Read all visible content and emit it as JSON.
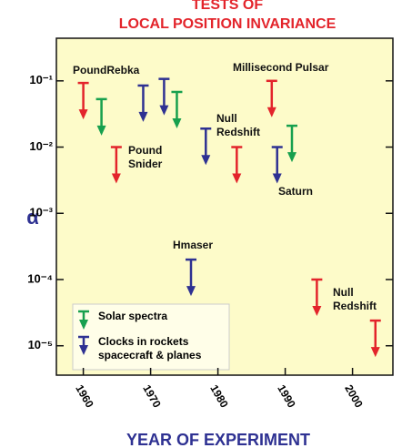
{
  "chart_data": {
    "type": "upper-limit",
    "title": [
      "TESTS OF",
      "LOCAL POSITION INVARIANCE"
    ],
    "xlabel": "YEAR OF EXPERIMENT",
    "ylabel": "α",
    "log_y": true,
    "xlim": [
      1956,
      2006
    ],
    "xticks": [
      1960,
      1970,
      1980,
      1990,
      2000
    ],
    "ylim": [
      3.6e-06,
      0.44
    ],
    "yticks": [
      {
        "value": 0.1,
        "label": "10⁻¹"
      },
      {
        "value": 0.01,
        "label": "10⁻²"
      },
      {
        "value": 0.001,
        "label": "10⁻³"
      },
      {
        "value": 0.0001,
        "label": "10⁻⁴"
      },
      {
        "value": 1e-05,
        "label": "10⁻⁵"
      }
    ],
    "legend": "lower left",
    "series": [
      {
        "color": "#e3242b",
        "x": [
          1960,
          1964.9,
          1982.8,
          1988,
          1994.7,
          2003.4
        ],
        "values": [
          0.093,
          0.01,
          0.01,
          0.1,
          0.0001,
          2.4e-05
        ]
      },
      {
        "name": "Solar spectra",
        "color": "#17a04e",
        "x": [
          1962.7,
          1973.9,
          1991
        ],
        "values": [
          0.053,
          0.068,
          0.021
        ]
      },
      {
        "name": [
          "Clocks in rockets",
          "spacecraft & planes"
        ],
        "color": "#2e3192",
        "x": [
          1968.9,
          1972,
          1978.2,
          1988.8,
          1976
        ],
        "values": [
          0.085,
          0.107,
          0.019,
          0.01,
          0.0002
        ]
      }
    ],
    "annotations": [
      [
        "PoundRebka"
      ],
      [
        "Millisecond Pulsar"
      ],
      [
        "Null",
        "Redshift"
      ],
      [
        "Pound",
        "Snider"
      ],
      [
        "Saturn"
      ],
      [
        "Hmaser"
      ],
      [
        "Null",
        "Redshift"
      ]
    ]
  }
}
